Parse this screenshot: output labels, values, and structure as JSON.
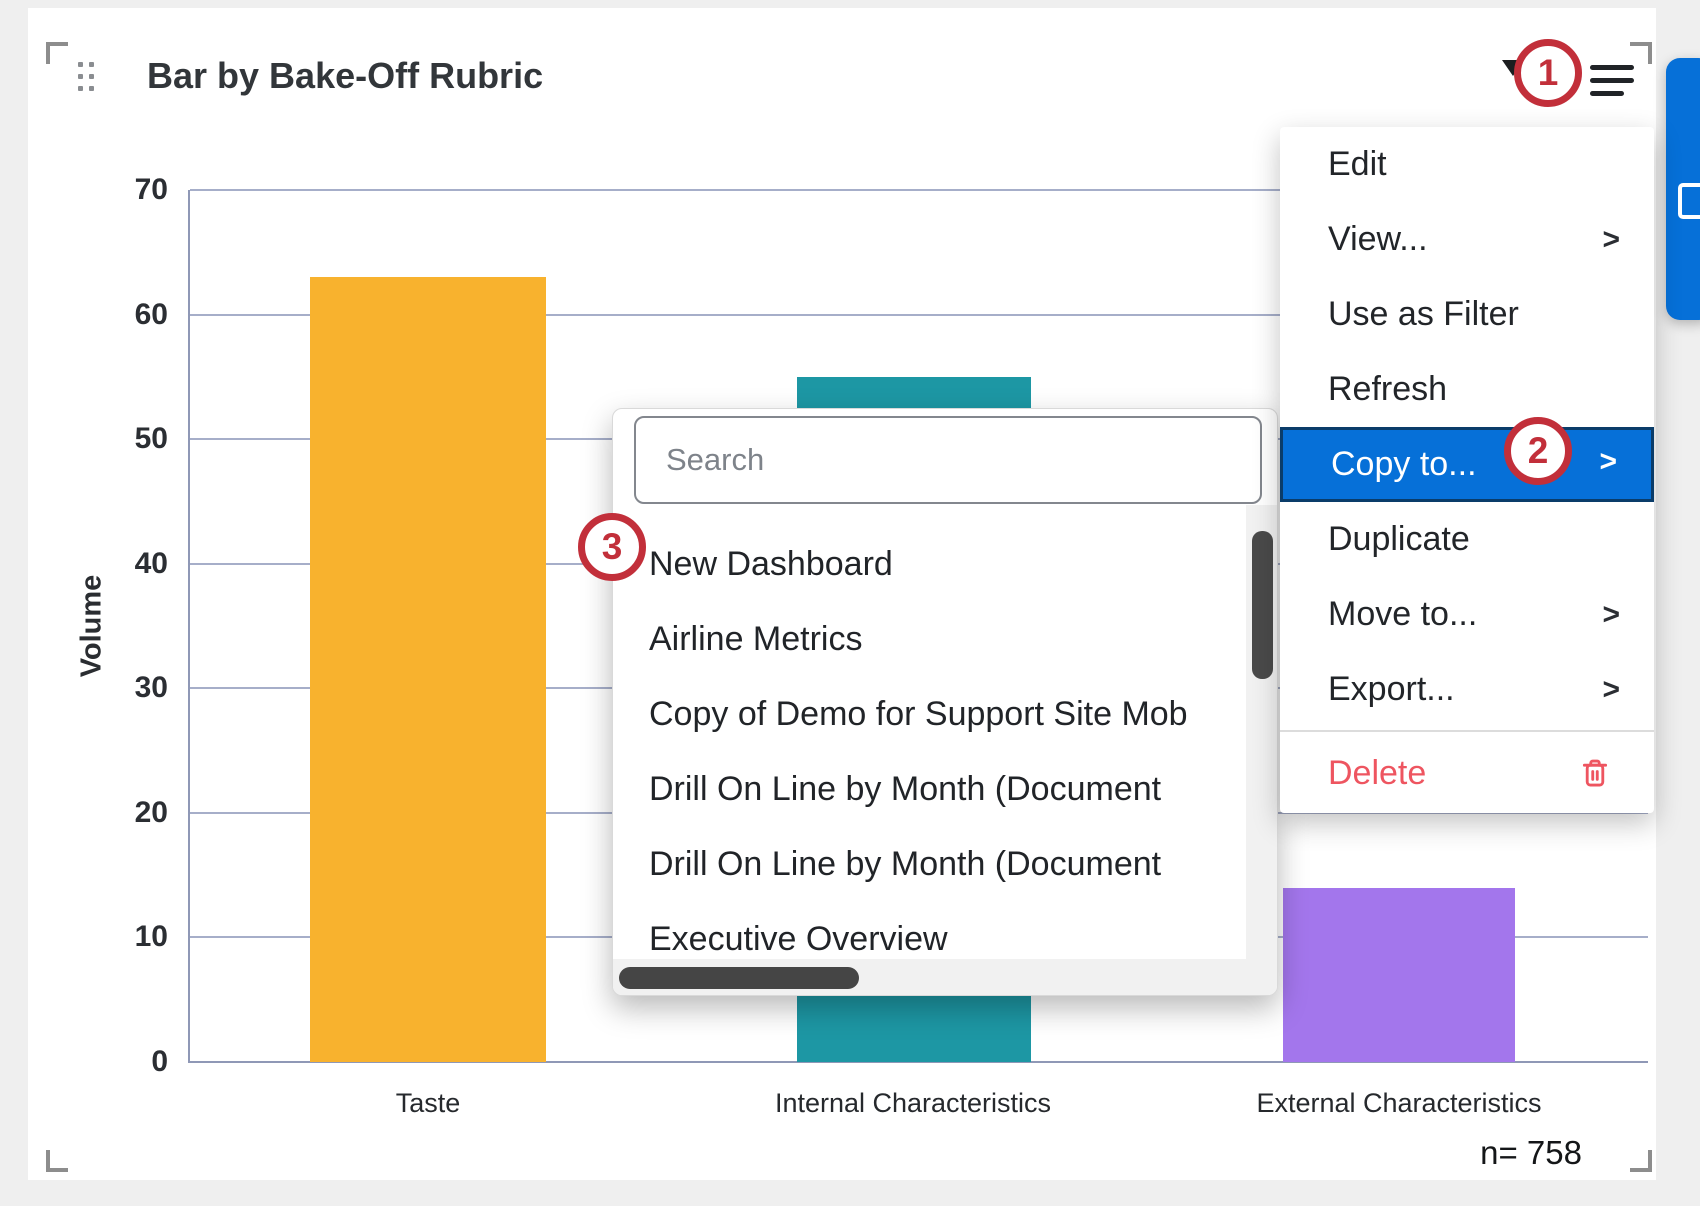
{
  "widget": {
    "title": "Bar by Bake-Off Rubric",
    "sample_size_label": "n= 758"
  },
  "annotations": {
    "step1": "1",
    "step2": "2",
    "step3": "3"
  },
  "menu": {
    "chevron_glyph": ">",
    "items": [
      {
        "label": "Edit"
      },
      {
        "label": "View...",
        "submenu": true
      },
      {
        "label": "Use as Filter"
      },
      {
        "label": "Refresh"
      },
      {
        "label": "Copy to...",
        "submenu": true,
        "highlighted": true
      },
      {
        "label": "Duplicate"
      },
      {
        "label": "Move to...",
        "submenu": true
      },
      {
        "label": "Export...",
        "submenu": true
      },
      {
        "label": "Delete",
        "danger": true
      }
    ]
  },
  "submenu": {
    "search_placeholder": "Search",
    "items": [
      "New Dashboard",
      "Airline Metrics",
      "Copy of Demo for Support Site Mob",
      "Drill On Line by Month (Document",
      "Drill On Line by Month (Document",
      "Executive Overview"
    ]
  },
  "chart_data": {
    "type": "bar",
    "title": "Bar by Bake-Off Rubric",
    "categories": [
      "Taste",
      "Internal Characteristics",
      "External Characteristics"
    ],
    "values": [
      63,
      55,
      14
    ],
    "colors": [
      "#f8b22e",
      "#1d97a4",
      "#a376ec"
    ],
    "xlabel": "",
    "ylabel": "Volume",
    "ylim": [
      0,
      70
    ],
    "yticks": [
      0,
      10,
      20,
      30,
      40,
      50,
      60,
      70
    ],
    "grid": true,
    "legend": false,
    "sample_size_label": "n= 758"
  },
  "colors": {
    "menu_highlight": "#0670d8",
    "menu_highlight_border": "#0a3c69",
    "danger_red": "#ee5560",
    "annotation_red": "#c22f3a",
    "side_button_blue": "#0670d8",
    "gridline": "#a6aec9"
  }
}
